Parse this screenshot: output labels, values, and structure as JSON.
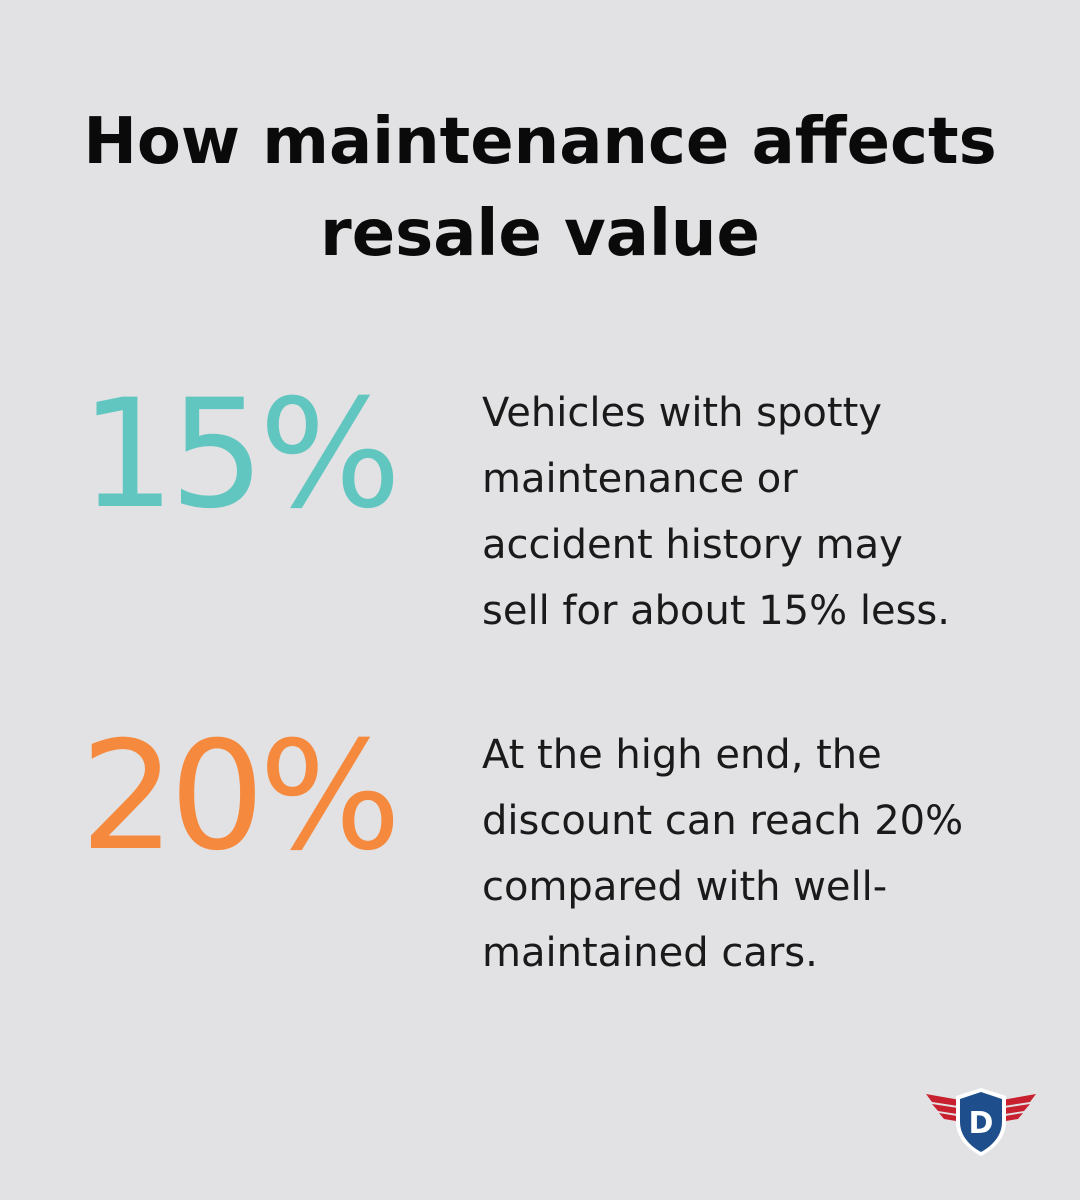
{
  "title": {
    "line1": "How maintenance affects",
    "line2": "resale value"
  },
  "stats": [
    {
      "value": "15%",
      "lines": [
        "Vehicles with spotty",
        "maintenance or",
        "accident history may",
        "sell for about 15% less."
      ],
      "color": "#62c6c0"
    },
    {
      "value": "20%",
      "lines": [
        "At the high end, the",
        "discount can reach 20%",
        "compared with well-",
        "maintained cars."
      ],
      "color": "#f58a3e"
    }
  ],
  "logo": {
    "icon": "winged-shield-d-logo",
    "letter": "D",
    "colors": {
      "wings": "#c8202f",
      "shield": "#1e4f8c"
    }
  }
}
